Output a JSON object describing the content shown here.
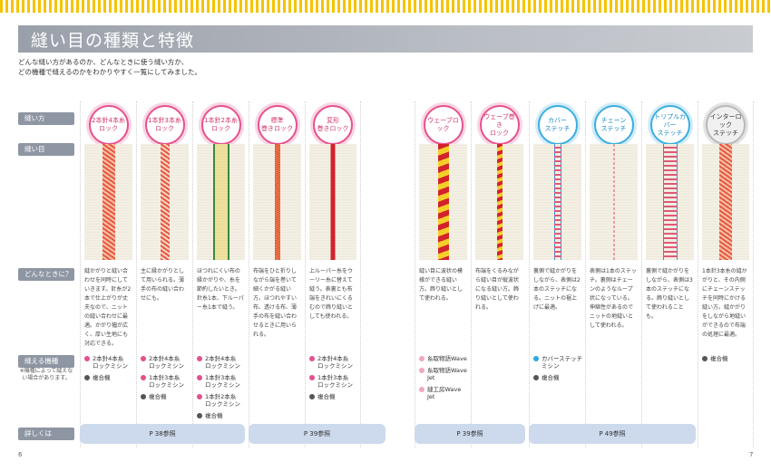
{
  "page": {
    "title": "縫い目の種類と特徴",
    "intro_line1": "どんな縫い方があるのか、どんなときに使う縫い方か、",
    "intro_line2": "どの機種で縫えるのかをわかりやすく一覧にしてみました。",
    "page_left": "6",
    "page_right": "7"
  },
  "row_labels": {
    "stitch_name": "縫い方",
    "seam": "縫い目",
    "when": "どんなときに？",
    "machines": "縫える機種",
    "machines_note": "※機種によって縫えない場合があります。",
    "details": "詳しくは"
  },
  "colors": {
    "accent_pink": "#e7518f",
    "accent_blue": "#3aaee0",
    "banner_gray": "#9aa0aa",
    "ref_blue": "#cdd9ec"
  },
  "columns": [
    {
      "name_l1": "2本針4本糸",
      "name_l2": "ロック",
      "circle": "pink",
      "desc": "縫かがりと縫い合わせを同時にしていきます。針糸が2本で仕上がりが丈夫なので、ニットの縫い合わせに最適。かがり幅が広く、厚い生地にも対応できる。",
      "machines": [
        {
          "color": "pink",
          "l1": "2本針4本糸",
          "l2": "ロックミシン"
        },
        {
          "color": "gray",
          "l1": "複合機",
          "l2": ""
        }
      ]
    },
    {
      "name_l1": "1本針3本糸",
      "name_l2": "ロック",
      "circle": "pink",
      "desc": "主に縁かがりとして用いられる。薄手の布の縫い合わせにも。",
      "machines": [
        {
          "color": "pink",
          "l1": "2本針4本糸",
          "l2": "ロックミシン"
        },
        {
          "color": "pink",
          "l1": "1本針3本糸",
          "l2": "ロックミシン"
        },
        {
          "color": "gray",
          "l1": "複合機",
          "l2": ""
        }
      ]
    },
    {
      "name_l1": "1本針2本糸",
      "name_l2": "ロック",
      "circle": "pink",
      "desc": "ほつれにくい布の縁かがりや、糸を節約したいとき。針糸1本、下ルーパー糸1本で縫う。",
      "machines": [
        {
          "color": "pink",
          "l1": "2本針4本糸",
          "l2": "ロックミシン"
        },
        {
          "color": "pink",
          "l1": "1本針3本糸",
          "l2": "ロックミシン"
        },
        {
          "color": "pink",
          "l1": "1本針2本糸",
          "l2": "ロックミシン"
        },
        {
          "color": "gray",
          "l1": "複合機",
          "l2": ""
        }
      ]
    },
    {
      "name_l1": "標準",
      "name_l2": "巻きロック",
      "circle": "pink",
      "desc": "布端をひと折りしながら端を巻いて細くかがる縫い方。ほつれやすい布、透ける布、薄手の布を縫い合わせるときに用いられる。",
      "machines": []
    },
    {
      "name_l1": "変形",
      "name_l2": "巻きロック",
      "circle": "pink",
      "desc": "上ルーパー糸をウーリー糸に替えて縫う。表裏とも布端をきれいにくるむので飾り縫いとしても使われる。",
      "machines": [
        {
          "color": "pink",
          "l1": "2本針4本糸",
          "l2": "ロックミシン"
        },
        {
          "color": "pink",
          "l1": "1本針3本糸",
          "l2": "ロックミシン"
        },
        {
          "color": "gray",
          "l1": "複合機",
          "l2": ""
        }
      ]
    },
    {
      "name_l1": "ウェーブロック",
      "name_l2": "",
      "circle": "pink",
      "desc": "縫い目に波状の模様ができる縫い方。飾り縫いとして使われる。",
      "machines": [
        {
          "color": "lpink",
          "l1": "糸取物語Wave",
          "l2": ""
        },
        {
          "color": "lpink",
          "l1": "糸取物語Wave Jet",
          "l2": ""
        },
        {
          "color": "lpink",
          "l1": "縫工房Wave Jet",
          "l2": ""
        }
      ]
    },
    {
      "name_l1": "ウェーブ巻き",
      "name_l2": "ロック",
      "circle": "pink",
      "desc": "布端をくるみながら縫い目が縦波状になる縫い方。飾り縫いとして使われる。",
      "machines": []
    },
    {
      "name_l1": "カバー",
      "name_l2": "ステッチ",
      "circle": "blue",
      "desc": "裏側で縫かがりをしながら、表側は2本のステッチになる。ニットの裾上げに最適。",
      "machines": [
        {
          "color": "blue",
          "l1": "カバーステッチミシン",
          "l2": ""
        },
        {
          "color": "gray",
          "l1": "複合機",
          "l2": ""
        }
      ]
    },
    {
      "name_l1": "チェーン",
      "name_l2": "ステッチ",
      "circle": "blue",
      "desc": "表側は1本のステッチ。裏側はチェーンのようなループ状になっている。伸縮性があるのでニットの地縫いとして使われる。",
      "machines": []
    },
    {
      "name_l1": "トリプルカバー",
      "name_l2": "ステッチ",
      "circle": "blue",
      "desc": "裏側で縫かがりをしながら、表側は3本のステッチになる。飾り縫いとして使われることも。",
      "machines": []
    },
    {
      "name_l1": "インターロック",
      "name_l2": "ステッチ",
      "circle": "gray",
      "desc": "1本針3本糸の縫かがりと、その内側にチェーンステッチを同時にかける縫い方。縫かがりをしながら地縫いができるので布端の処理に最適。",
      "machines": [
        {
          "color": "gray",
          "l1": "複合機",
          "l2": ""
        }
      ]
    }
  ],
  "refs": [
    {
      "label": "P 38参照"
    },
    {
      "label": "P 39参照"
    },
    {
      "label": "P 39参照"
    },
    {
      "label": "P 49参照"
    }
  ]
}
